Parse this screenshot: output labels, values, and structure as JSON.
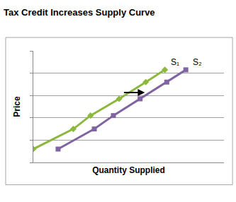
{
  "chart_data": {
    "type": "line",
    "title": "Tax Credit Increases Supply Curve",
    "x_label": "Quantity Supplied",
    "y_label": "Price",
    "xlim": [
      0,
      10
    ],
    "ylim": [
      0,
      5
    ],
    "yticks": [
      0,
      1,
      2,
      3,
      4,
      5
    ],
    "grid": true,
    "tick_labels": false,
    "series": [
      {
        "name": "S₁",
        "color": "#8cb83e",
        "marker": "diamond",
        "x": [
          0,
          2.1,
          3,
          4.5,
          5.9,
          6.9
        ],
        "values": [
          0.6,
          1.5,
          2.1,
          2.85,
          3.6,
          4.15
        ]
      },
      {
        "name": "S₂",
        "color": "#8064a2",
        "marker": "square",
        "x": [
          1.3,
          3.2,
          4.2,
          5.6,
          7,
          8
        ],
        "values": [
          0.6,
          1.5,
          2.1,
          2.85,
          3.6,
          4.15
        ]
      }
    ]
  }
}
